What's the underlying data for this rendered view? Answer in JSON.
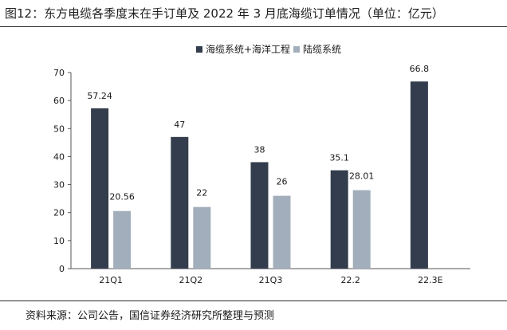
{
  "figure": {
    "title": "图12：东方电缆各季度末在手订单及 2022 年 3 月底海缆订单情况（单位：亿元）",
    "source": "资料来源：公司公告，国信证券经济研究所整理与预测"
  },
  "chart_data": {
    "type": "bar",
    "title": "",
    "xlabel": "",
    "ylabel": "",
    "categories": [
      "21Q1",
      "21Q2",
      "21Q3",
      "22.2",
      "22.3E"
    ],
    "ylim": [
      0,
      70
    ],
    "yticks": [
      0,
      10,
      20,
      30,
      40,
      50,
      60,
      70
    ],
    "grid": false,
    "legend_position": "top-center",
    "series": [
      {
        "name": "海缆系统+海洋工程",
        "color": "#333d4d",
        "values": [
          57.24,
          47,
          38,
          35.1,
          66.8
        ],
        "labels": [
          "57.24",
          "47",
          "38",
          "35.1",
          "66.8"
        ]
      },
      {
        "name": "陆缆系统",
        "color": "#a3aebc",
        "values": [
          20.56,
          22,
          26,
          28.01,
          null
        ],
        "labels": [
          "20.56",
          "22",
          "26",
          "28.01",
          ""
        ]
      }
    ]
  }
}
